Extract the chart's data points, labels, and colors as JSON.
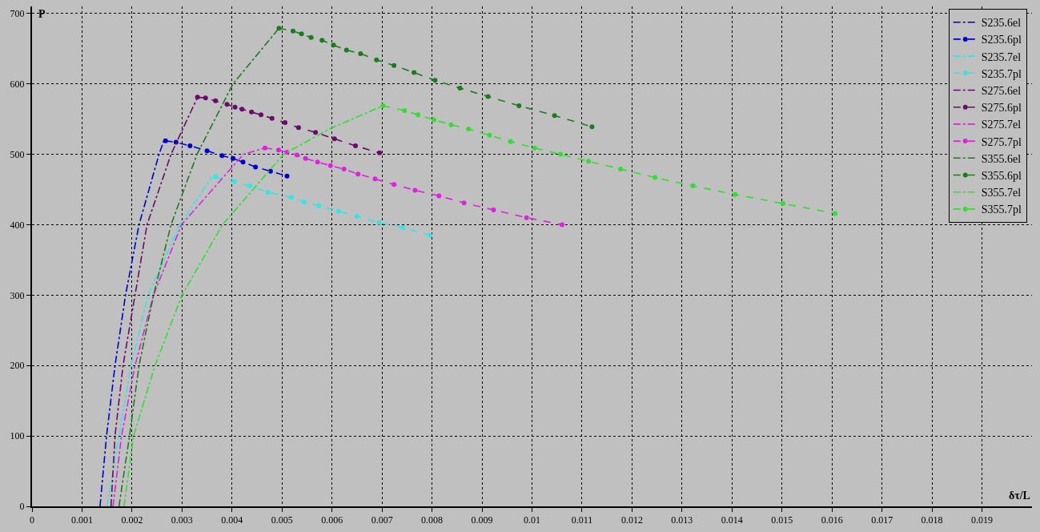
{
  "chart_data": {
    "type": "line",
    "xlabel": "δτ/L",
    "ylabel": "P",
    "xlim": [
      0,
      0.02
    ],
    "ylim": [
      0,
      710
    ],
    "xticks": [
      0,
      0.001,
      0.002,
      0.003,
      0.004,
      0.005,
      0.006,
      0.007,
      0.008,
      0.009,
      0.01,
      0.011,
      0.012,
      0.013,
      0.014,
      0.015,
      0.016,
      0.017,
      0.018,
      0.019
    ],
    "yticks": [
      0,
      100,
      200,
      300,
      400,
      500,
      600,
      700
    ],
    "grid": true,
    "legend": "top right",
    "series": [
      {
        "name": "S235.6el",
        "color": "#0000cd",
        "line_style": "dashdot",
        "marker": "none",
        "x": [
          0.00136,
          0.00149,
          0.00166,
          0.00187,
          0.00214,
          0.00254,
          0.00264
        ],
        "values": [
          0,
          100,
          200,
          300,
          400,
          500,
          520
        ]
      },
      {
        "name": "S235.6pl",
        "color": "#0000cd",
        "line_style": "dashed",
        "marker": "circle",
        "x": [
          0.00267,
          0.00288,
          0.00316,
          0.0035,
          0.0038,
          0.00402,
          0.00422,
          0.00447,
          0.00477,
          0.0051
        ],
        "values": [
          519,
          517,
          512,
          505,
          498,
          494,
          489,
          482,
          476,
          469
        ]
      },
      {
        "name": "S235.7el",
        "color": "#33e6e6",
        "line_style": "dashdot",
        "marker": "none",
        "x": [
          0.0015,
          0.00174,
          0.00198,
          0.00232,
          0.00296,
          0.0036
        ],
        "values": [
          0,
          100,
          200,
          300,
          400,
          468
        ]
      },
      {
        "name": "S235.7pl",
        "color": "#33e6e6",
        "line_style": "dashed",
        "marker": "circle",
        "x": [
          0.00367,
          0.00405,
          0.00436,
          0.00472,
          0.00519,
          0.00544,
          0.00574,
          0.00613,
          0.0065,
          0.00694,
          0.00742,
          0.00796
        ],
        "values": [
          468,
          461,
          455,
          446,
          439,
          432,
          427,
          419,
          412,
          403,
          396,
          385
        ]
      },
      {
        "name": "S275.6el",
        "color": "#6a0a6a",
        "line_style": "dashdot",
        "marker": "none",
        "x": [
          0.00158,
          0.00166,
          0.00182,
          0.00206,
          0.0023,
          0.00278,
          0.00331
        ],
        "values": [
          0,
          100,
          200,
          300,
          400,
          500,
          581
        ]
      },
      {
        "name": "S275.6pl",
        "color": "#6a0a6a",
        "line_style": "dashed",
        "marker": "circle",
        "x": [
          0.00331,
          0.00347,
          0.00367,
          0.0039,
          0.00406,
          0.0042,
          0.00439,
          0.00458,
          0.0048,
          0.00506,
          0.00533,
          0.00567,
          0.00605,
          0.00647,
          0.00695
        ],
        "values": [
          581,
          580,
          576,
          571,
          567,
          564,
          560,
          556,
          551,
          545,
          538,
          531,
          522,
          512,
          502
        ]
      },
      {
        "name": "S275.7el",
        "color": "#e020e0",
        "line_style": "dashdot",
        "marker": "none",
        "x": [
          0.00162,
          0.00179,
          0.00206,
          0.00243,
          0.00299,
          0.00423,
          0.00466
        ],
        "values": [
          0,
          100,
          200,
          300,
          400,
          500,
          509
        ]
      },
      {
        "name": "S275.7pl",
        "color": "#e020e0",
        "line_style": "dashed",
        "marker": "circle",
        "x": [
          0.00466,
          0.00493,
          0.0051,
          0.0053,
          0.00547,
          0.00571,
          0.00597,
          0.00624,
          0.00652,
          0.00686,
          0.00724,
          0.00766,
          0.00814,
          0.00864,
          0.00923,
          0.00989,
          0.0106
        ],
        "values": [
          509,
          506,
          503,
          499,
          494,
          489,
          484,
          479,
          472,
          465,
          457,
          449,
          441,
          431,
          421,
          410,
          400
        ]
      },
      {
        "name": "S355.6el",
        "color": "#1e7a1e",
        "line_style": "dashdot",
        "marker": "none",
        "x": [
          0.00174,
          0.00195,
          0.00214,
          0.00243,
          0.00278,
          0.0033,
          0.00402,
          0.00494
        ],
        "values": [
          0,
          100,
          200,
          300,
          400,
          500,
          600,
          679
        ]
      },
      {
        "name": "S355.6pl",
        "color": "#1e7a1e",
        "line_style": "dashed",
        "marker": "circle",
        "x": [
          0.00494,
          0.00522,
          0.00539,
          0.00558,
          0.0058,
          0.00603,
          0.00629,
          0.00657,
          0.00689,
          0.00724,
          0.00764,
          0.00806,
          0.00856,
          0.00912,
          0.00974,
          0.01045,
          0.0112
        ],
        "values": [
          679,
          675,
          671,
          666,
          662,
          655,
          648,
          643,
          634,
          626,
          616,
          605,
          594,
          582,
          569,
          555,
          539
        ]
      },
      {
        "name": "S355.7el",
        "color": "#33dd33",
        "line_style": "dashdot",
        "marker": "none",
        "x": [
          0.00184,
          0.00203,
          0.00246,
          0.003,
          0.00381,
          0.00503,
          0.00595,
          0.00702
        ],
        "values": [
          0,
          100,
          200,
          300,
          400,
          500,
          536,
          569
        ]
      },
      {
        "name": "S355.7pl",
        "color": "#33dd33",
        "line_style": "dashed",
        "marker": "circle",
        "x": [
          0.00702,
          0.00745,
          0.00772,
          0.00804,
          0.00838,
          0.00873,
          0.00915,
          0.00957,
          0.01005,
          0.01057,
          0.01113,
          0.01177,
          0.01246,
          0.01322,
          0.01406,
          0.01502,
          0.01606
        ],
        "values": [
          569,
          562,
          556,
          549,
          542,
          536,
          527,
          518,
          509,
          500,
          490,
          479,
          467,
          455,
          443,
          430,
          416
        ]
      }
    ]
  }
}
